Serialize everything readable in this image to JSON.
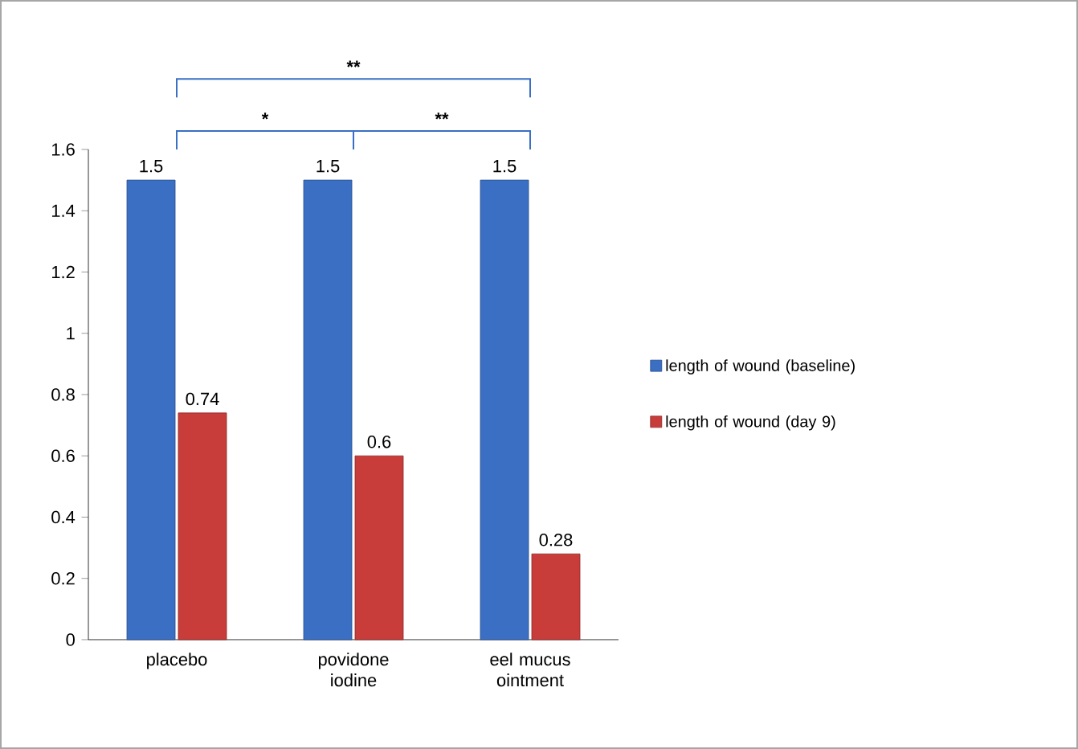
{
  "chart_data": {
    "type": "bar",
    "categories": [
      "placebo",
      "povidone iodine",
      "eel mucus ointment"
    ],
    "series": [
      {
        "name": "length of wound (baseline)",
        "color": "#3a6fc4",
        "values": [
          1.5,
          1.5,
          1.5
        ]
      },
      {
        "name": "length of wound (day 9)",
        "color": "#c83c3a",
        "values": [
          0.74,
          0.6,
          0.28
        ]
      }
    ],
    "ylim": [
      0,
      1.6
    ],
    "yticks": [
      0,
      0.2,
      0.4,
      0.6,
      0.8,
      1,
      1.2,
      1.4,
      1.6
    ],
    "data_labels": true,
    "legend": "right",
    "grid": false,
    "annotations": [
      "*",
      "**",
      "**"
    ]
  }
}
